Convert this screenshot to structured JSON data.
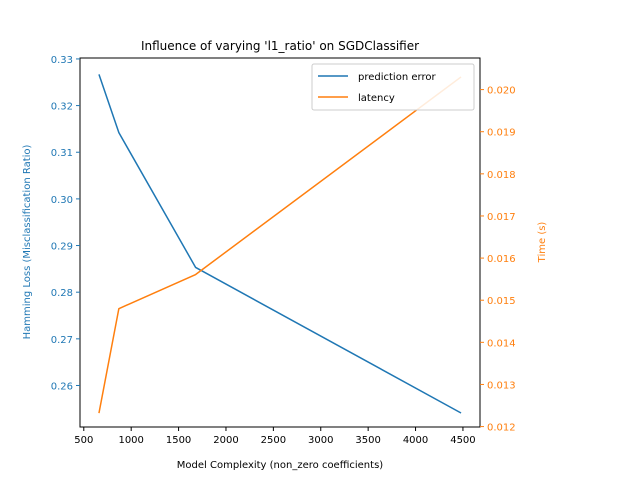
{
  "chart_data": {
    "type": "line",
    "title": "Influence of varying 'l1_ratio' on SGDClassifier",
    "xlabel": "Model Complexity (non_zero coefficients)",
    "ylabel_left": "Hamming Loss (Misclassification Ratio)",
    "ylabel_right": "Time (s)",
    "xlim": [
      460,
      4680
    ],
    "ylim_left": [
      0.2511,
      0.3302
    ],
    "ylim_right": [
      0.01199,
      0.02075
    ],
    "x_ticks": [
      500,
      1000,
      1500,
      2000,
      2500,
      3000,
      3500,
      4000,
      4500
    ],
    "y_left_ticks": [
      0.26,
      0.27,
      0.28,
      0.29,
      0.3,
      0.31,
      0.32,
      0.33
    ],
    "y_right_ticks": [
      0.012,
      0.013,
      0.014,
      0.015,
      0.016,
      0.017,
      0.018,
      0.019,
      0.02
    ],
    "legend_position": "top-right",
    "grid": false,
    "series": [
      {
        "name": "prediction error",
        "axis": "left",
        "color": "#1f77b4",
        "x": [
          660,
          870,
          1680,
          4480
        ],
        "y": [
          0.3267,
          0.3142,
          0.2853,
          0.2541
        ]
      },
      {
        "name": "latency",
        "axis": "right",
        "color": "#ff7f0e",
        "x": [
          660,
          870,
          1680,
          4480
        ],
        "y": [
          0.01232,
          0.0148,
          0.01561,
          0.0203
        ]
      }
    ]
  }
}
